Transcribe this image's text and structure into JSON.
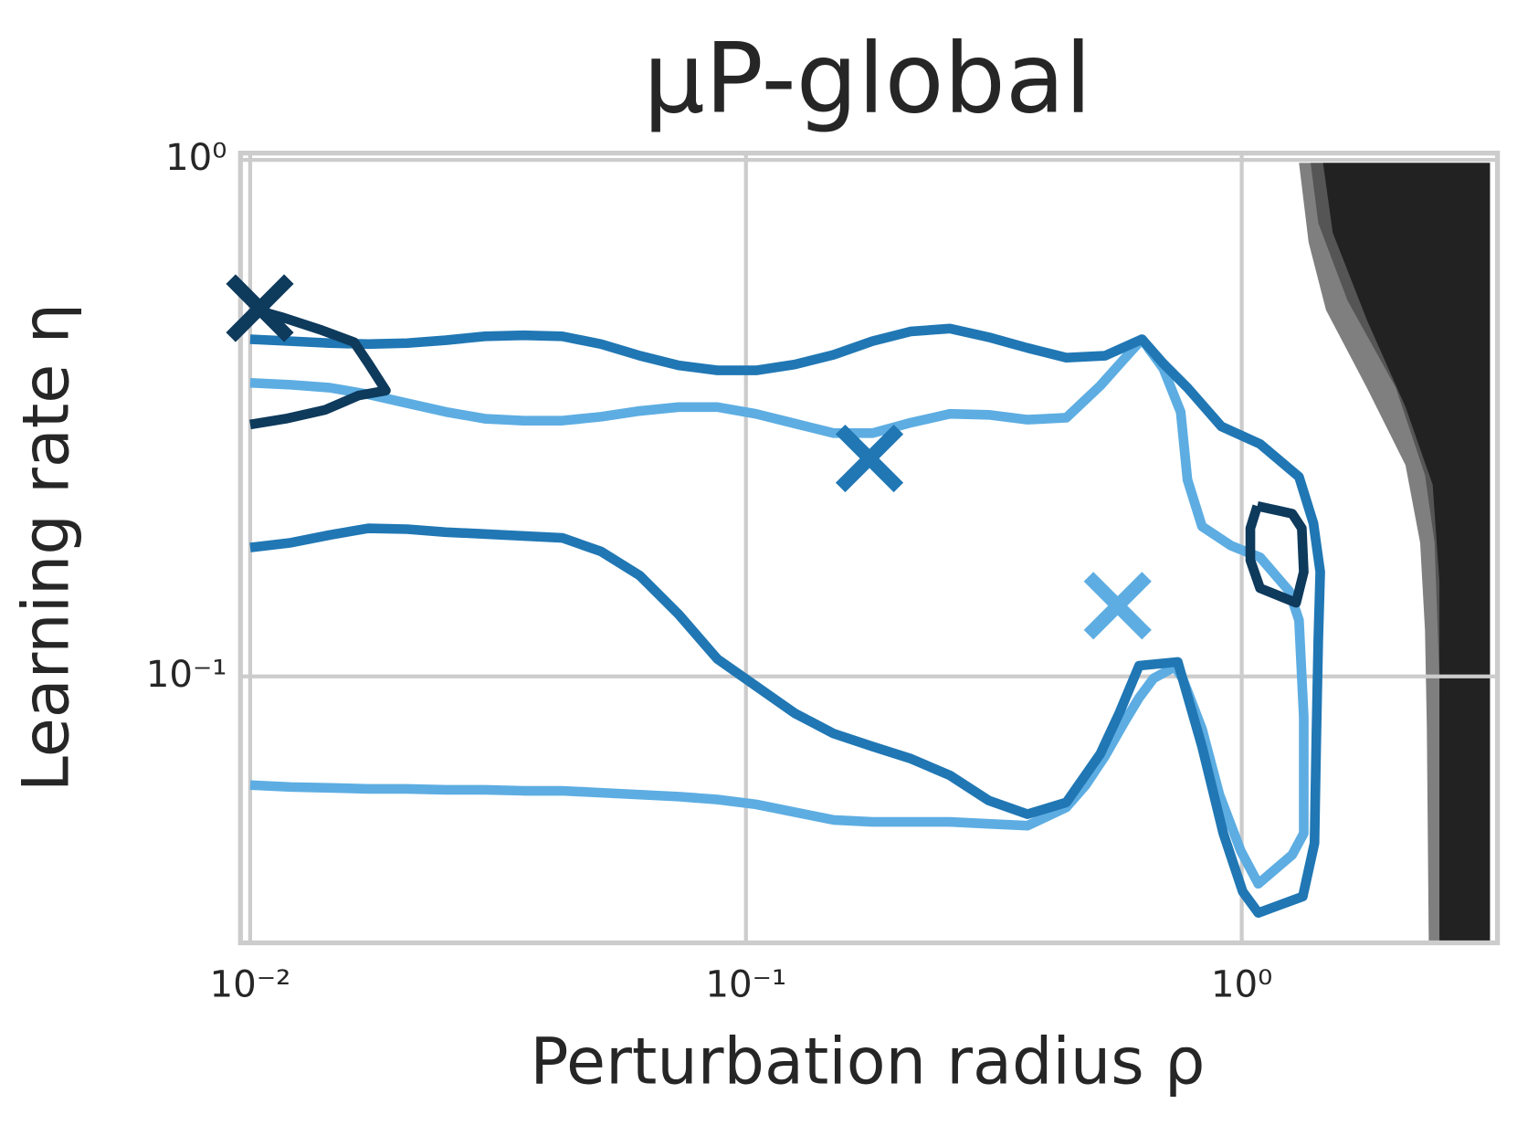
{
  "chart_data": {
    "type": "line",
    "title": "μP-global",
    "xlabel": "Perturbation radius ρ",
    "ylabel": "Learning rate η",
    "xscale": "log",
    "yscale": "log",
    "grid": true,
    "xlim": [
      0.00956,
      3.28
    ],
    "ylim": [
      0.0305,
      1.031
    ],
    "xticks": [
      {
        "value": 0.01,
        "label": "10⁻²"
      },
      {
        "value": 0.1,
        "label": "10⁻¹"
      },
      {
        "value": 1,
        "label": "10⁰"
      }
    ],
    "yticks": [
      {
        "value": 0.1,
        "label": "10⁻¹"
      },
      {
        "value": 1,
        "label": "10⁰"
      }
    ],
    "fill_regions": [
      {
        "color": "#7f7f7f",
        "x": [
          1.305,
          1.364,
          1.479,
          1.788,
          2.14,
          2.29,
          2.342,
          2.363,
          2.384,
          3.167,
          3.167
        ],
        "y": [
          0.987,
          0.6929,
          0.512,
          0.3623,
          0.2564,
          0.1815,
          0.123,
          0.07988,
          0.03048,
          0.03048,
          0.987
        ]
      },
      {
        "color": "#555555",
        "x": [
          1.377,
          1.427,
          1.634,
          2.046,
          2.342,
          2.449,
          2.505,
          2.562,
          3.167,
          3.167
        ],
        "y": [
          0.987,
          0.7551,
          0.5346,
          0.3623,
          0.2456,
          0.1815,
          0.09913,
          0.03048,
          0.03048,
          0.987
        ]
      },
      {
        "color": "#222222",
        "x": [
          1.459,
          1.526,
          1.788,
          2.14,
          2.427,
          2.505,
          2.505,
          3.167,
          3.167
        ],
        "y": [
          0.987,
          0.7233,
          0.4903,
          0.3323,
          0.2352,
          0.1527,
          0.03048,
          0.03048,
          0.987
        ]
      }
    ],
    "series": [
      {
        "color": "#5dade2",
        "x": [
          0.01,
          0.01208,
          0.01447,
          0.01732,
          0.02073,
          0.02483,
          0.02972,
          0.03558,
          0.04261,
          0.05102,
          0.0611,
          0.07314,
          0.08758,
          0.1048,
          0.1255,
          0.1503,
          0.1799,
          0.2154,
          0.2579,
          0.3088,
          0.3698,
          0.4428,
          0.5183,
          0.5801,
          0.6292,
          0.6945,
          0.7531,
          0.7773,
          0.8316,
          0.9517,
          1.089,
          1.247,
          1.305,
          1.334,
          1.334,
          1.264,
          1.08,
          0.9954,
          0.9016,
          0.8316,
          0.7599,
          0.733,
          0.664,
          0.6207,
          0.5801,
          0.5302,
          0.4845,
          0.4428,
          0.3698,
          0.3088,
          0.2579,
          0.2154,
          0.1799,
          0.1503,
          0.1255,
          0.1048,
          0.08758,
          0.07314,
          0.0611,
          0.05102,
          0.04261,
          0.03558,
          0.02972,
          0.02483,
          0.02073,
          0.01732,
          0.01447,
          0.01208,
          0.01
        ],
        "y": [
          0.3702,
          0.367,
          0.3623,
          0.3516,
          0.3381,
          0.3252,
          0.3155,
          0.3128,
          0.3128,
          0.3183,
          0.3266,
          0.3323,
          0.3323,
          0.3224,
          0.3088,
          0.2958,
          0.2958,
          0.3101,
          0.3224,
          0.321,
          0.3142,
          0.3169,
          0.3654,
          0.4124,
          0.4497,
          0.3949,
          0.3252,
          0.2404,
          0.1953,
          0.1792,
          0.1701,
          0.1463,
          0.1285,
          0.0834,
          0.04967,
          0.04517,
          0.03968,
          0.04596,
          0.05903,
          0.0792,
          0.09913,
          0.1044,
          0.09913,
          0.09094,
          0.08162,
          0.07016,
          0.06163,
          0.0558,
          0.05141,
          0.05185,
          0.0523,
          0.0523,
          0.0523,
          0.05275,
          0.05461,
          0.05654,
          0.05777,
          0.05853,
          0.05903,
          0.05955,
          0.06006,
          0.06006,
          0.06032,
          0.06032,
          0.06058,
          0.06058,
          0.06084,
          0.0611,
          0.06163
        ],
        "marker_x": 0.5621,
        "marker_y": 0.1371
      },
      {
        "color": "#2077b4",
        "x": [
          0.01,
          0.01208,
          0.01447,
          0.01732,
          0.02073,
          0.02483,
          0.02972,
          0.03558,
          0.04261,
          0.05102,
          0.0611,
          0.07314,
          0.08758,
          0.1048,
          0.1255,
          0.1503,
          0.1799,
          0.2154,
          0.2579,
          0.3088,
          0.3698,
          0.4428,
          0.5302,
          0.6292,
          0.6945,
          0.7773,
          0.9097,
          1.089,
          1.305,
          1.395,
          1.44,
          1.427,
          1.414,
          1.402,
          1.328,
          1.08,
          1.0046,
          0.9182,
          0.8316,
          0.743,
          0.6207,
          0.5672,
          0.5183,
          0.4428,
          0.3698,
          0.3088,
          0.2579,
          0.2154,
          0.1799,
          0.1503,
          0.1255,
          0.1048,
          0.08758,
          0.07314,
          0.0611,
          0.05102,
          0.04261,
          0.03558,
          0.02972,
          0.02483,
          0.02073,
          0.01732,
          0.01447,
          0.01208,
          0.01
        ],
        "y": [
          0.4497,
          0.4458,
          0.442,
          0.4401,
          0.442,
          0.4477,
          0.4556,
          0.4576,
          0.4556,
          0.4401,
          0.4178,
          0.4001,
          0.3915,
          0.3915,
          0.4018,
          0.4197,
          0.4458,
          0.4656,
          0.4716,
          0.4537,
          0.4325,
          0.4142,
          0.4178,
          0.4497,
          0.4036,
          0.3623,
          0.3048,
          0.2819,
          0.2435,
          0.1979,
          0.1594,
          0.1178,
          0.0765,
          0.04757,
          0.0375,
          0.03485,
          0.03833,
          0.04967,
          0.07322,
          0.1067,
          0.1049,
          0.08522,
          0.07077,
          0.05703,
          0.05414,
          0.05752,
          0.06434,
          0.06926,
          0.07322,
          0.07749,
          0.08485,
          0.09577,
          0.1081,
          0.1319,
          0.1567,
          0.1746,
          0.1855,
          0.1871,
          0.1887,
          0.1903,
          0.1928,
          0.1936,
          0.1879,
          0.1815,
          0.1776
        ],
        "marker_x": 0.1775,
        "marker_y": 0.2643
      },
      {
        "color": "#0e3a5c",
        "x": [
          0.01,
          0.0118,
          0.01414,
          0.01656,
          0.01878,
          0.01732,
          0.0162,
          0.01383,
          0.01155,
          0.01,
          null,
          1.075,
          1.264,
          1.322,
          1.334,
          1.287,
          1.089,
          1.041,
          1.041,
          1.075
        ],
        "y": [
          0.3074,
          0.3155,
          0.328,
          0.35,
          0.3576,
          0.4036,
          0.4439,
          0.4696,
          0.4967,
          0.5164,
          null,
          0.2138,
          0.2066,
          0.1936,
          0.1594,
          0.1389,
          0.1482,
          0.1679,
          0.1936,
          0.2138
        ],
        "marker_x": 0.01046,
        "marker_y": 0.5164
      }
    ]
  }
}
